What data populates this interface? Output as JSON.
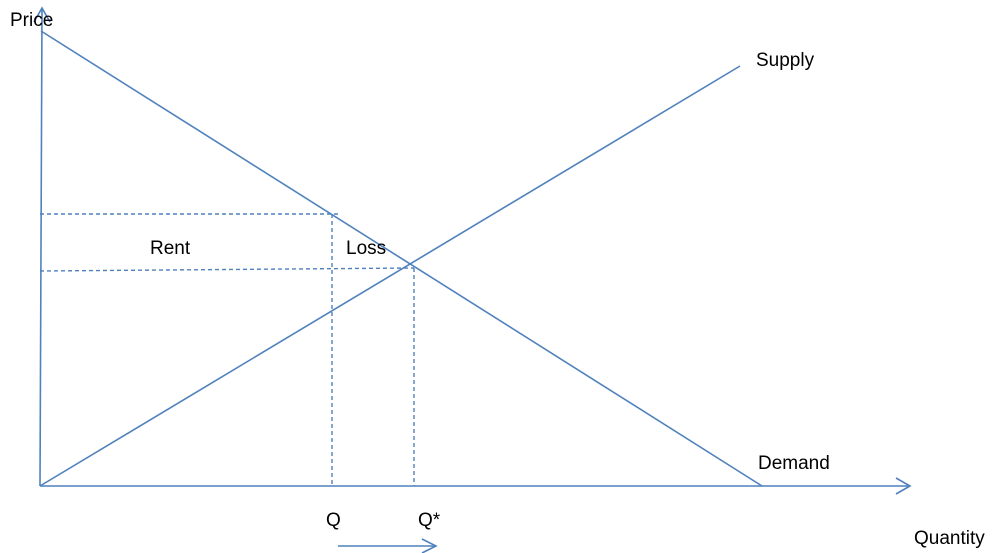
{
  "colors": {
    "line": "#4f81bd",
    "text": "#000000",
    "background": "#ffffff"
  },
  "axes": {
    "y_label": "Price",
    "x_label": "Quantity"
  },
  "curves": {
    "supply_label": "Supply",
    "demand_label": "Demand"
  },
  "regions": {
    "rent_label": "Rent",
    "loss_label": "Loss"
  },
  "quantities": {
    "q_label": "Q",
    "q_star_label": "Q*"
  }
}
